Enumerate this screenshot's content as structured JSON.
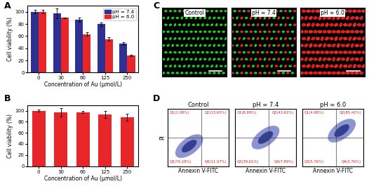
{
  "chart_data": [
    {
      "type": "bar",
      "panel_label": "A",
      "x_label": "Concentration of Au (μmol/L)",
      "y_label": "Cell viability (%)",
      "categories": [
        "0",
        "30",
        "60",
        "125",
        "250"
      ],
      "series": [
        {
          "name": "pH = 7.4",
          "color": "#2e3192",
          "values": [
            100,
            97,
            87,
            80,
            48
          ],
          "error": [
            3,
            8,
            3,
            3,
            2
          ]
        },
        {
          "name": "pH = 6.0",
          "color": "#e8262a",
          "values": [
            100,
            90,
            63,
            55,
            28
          ],
          "error": [
            3,
            1,
            3,
            3,
            1
          ]
        }
      ],
      "ylim": [
        0,
        110
      ],
      "yticks": [
        0,
        20,
        40,
        60,
        80,
        100
      ],
      "legend": "upper right"
    },
    {
      "type": "bar",
      "panel_label": "B",
      "x_label": "Concentration of Au (μmol/L)",
      "y_label": "Cell viability (%)",
      "categories": [
        "0",
        "30",
        "60",
        "125",
        "250"
      ],
      "values": [
        100,
        97,
        97,
        93,
        88
      ],
      "error": [
        2,
        8,
        2,
        6,
        6
      ],
      "color": "#e8262a",
      "ylim": [
        0,
        110
      ],
      "yticks": [
        0,
        20,
        40,
        60,
        80,
        100
      ]
    }
  ],
  "images": {
    "panel_label": "C",
    "labels": [
      "Control",
      "pH = 7.4",
      "pH = 6.0"
    ]
  },
  "flow_cytometry": {
    "panel_label": "D",
    "x_label": "Annexin V-FITC",
    "y_label": "PI",
    "plots": [
      {
        "title": "Control",
        "quadrants": [
          "Q1(1.08%)",
          "Q2(13.63%)",
          "Q3(74.28%)",
          "Q4(11.07%)"
        ]
      },
      {
        "title": "pH = 7.4",
        "quadrants": [
          "Q1(8.89%)",
          "Q2(43.62%)",
          "Q3(39.61%)",
          "Q4(7.89%)"
        ]
      },
      {
        "title": "pH = 6.0",
        "quadrants": [
          "Q1(4.88%)",
          "Q2(85.42%)",
          "Q3(5.76%)",
          "Q4(3.76%)"
        ]
      }
    ]
  }
}
